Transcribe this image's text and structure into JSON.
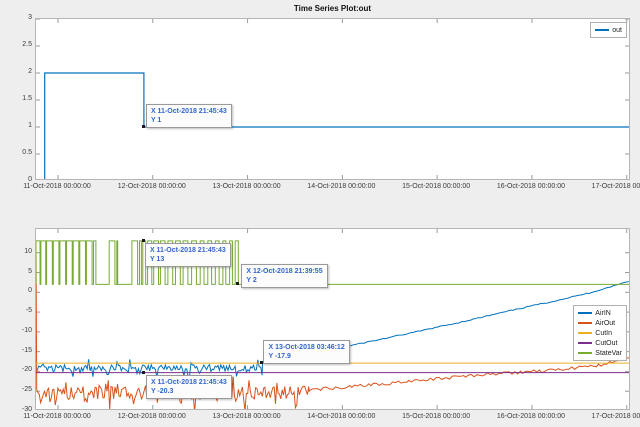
{
  "figure": {
    "title": "Time Series Plot:out",
    "background": "#eeeeee",
    "axes_border_color": "#b5b5b5",
    "datatip_text_color": "#3366cc"
  },
  "chart_data": [
    {
      "type": "line",
      "title": "Time Series Plot:out",
      "xlim_days": [
        -0.232,
        6.045
      ],
      "ylim": [
        0,
        3
      ],
      "yticks": [
        0,
        0.5,
        1,
        1.5,
        2,
        2.5,
        3
      ],
      "ytick_labels": [
        "0",
        "0.5",
        "1",
        "1.5",
        "2",
        "2.5",
        "3"
      ],
      "xtick_days": [
        0,
        1,
        2,
        3,
        4,
        5,
        6
      ],
      "xtick_labels": [
        "11-Oct-2018 00:00:00",
        "12-Oct-2018 00:00:00",
        "13-Oct-2018 00:00:00",
        "14-Oct-2018 00:00:00",
        "15-Oct-2018 00:00:00",
        "16-Oct-2018 00:00:00",
        "17-Oct-2018 00:00:00"
      ],
      "grid": false,
      "legend_position": "top-right",
      "series": [
        {
          "name": "out",
          "color": "#0072BD",
          "kind": "step",
          "points": [
            [
              -0.232,
              0
            ],
            [
              -0.14,
              0
            ],
            [
              -0.14,
              2
            ],
            [
              0.9067,
              2
            ],
            [
              0.9067,
              1
            ],
            [
              6.045,
              1
            ]
          ]
        }
      ],
      "datatips": [
        {
          "x_label": "11-Oct-2018 21:45:43",
          "x_days": 0.9067,
          "y": 1,
          "lines": [
            "X 11-Oct-2018 21:45:43",
            "Y 1"
          ]
        }
      ]
    },
    {
      "type": "line",
      "title": "",
      "xlim_days": [
        -0.232,
        6.045
      ],
      "ylim": [
        -30,
        16
      ],
      "yticks": [
        -30,
        -25,
        -20,
        -15,
        -10,
        -5,
        0,
        5,
        10
      ],
      "ytick_labels": [
        "-30",
        "-25",
        "-20",
        "-15",
        "-10",
        "-5",
        "0",
        "5",
        "10"
      ],
      "xtick_days": [
        0,
        1,
        2,
        3,
        4,
        5,
        6
      ],
      "xtick_labels": [
        "11-Oct-2018 00:00:00",
        "12-Oct-2018 00:00:00",
        "13-Oct-2018 00:00:00",
        "14-Oct-2018 00:00:00",
        "15-Oct-2018 00:00:00",
        "16-Oct-2018 00:00:00",
        "17-Oct-2018 00:00:00"
      ],
      "grid": false,
      "legend_position": "right",
      "series": [
        {
          "name": "AirIN",
          "color": "#0072BD",
          "kind": "composite",
          "parts": [
            {
              "kind": "noise",
              "t": [
                -0.232,
                2.157
              ],
              "mean": -19.1,
              "amp": 0.9,
              "down": 1.3,
              "up": 1.5,
              "dt": 0.015,
              "seed": 7,
              "end_v": -17.9
            },
            {
              "kind": "trend",
              "jitter": 0.13,
              "dt": 0.03,
              "seed": 11,
              "points": [
                [
                  2.157,
                  -17.9
                ],
                [
                  2.3,
                  -17.3
                ],
                [
                  2.45,
                  -16.8
                ],
                [
                  2.6,
                  -16.1
                ],
                [
                  2.8,
                  -15.2
                ],
                [
                  3.0,
                  -13.9
                ],
                [
                  3.2,
                  -12.9
                ],
                [
                  3.4,
                  -11.9
                ],
                [
                  3.6,
                  -10.9
                ],
                [
                  3.8,
                  -9.9
                ],
                [
                  4.0,
                  -8.8
                ],
                [
                  4.2,
                  -7.8
                ],
                [
                  4.4,
                  -6.7
                ],
                [
                  4.6,
                  -5.6
                ],
                [
                  4.8,
                  -4.5
                ],
                [
                  5.0,
                  -3.4
                ],
                [
                  5.2,
                  -2.4
                ],
                [
                  5.4,
                  -1.3
                ],
                [
                  5.6,
                  -0.2
                ],
                [
                  5.8,
                  1.2
                ],
                [
                  5.9,
                  1.9
                ],
                [
                  6.045,
                  3.0
                ]
              ]
            }
          ]
        },
        {
          "name": "AirOut",
          "color": "#D95319",
          "kind": "composite",
          "parts": [
            {
              "kind": "start_spike",
              "point": [
                -0.232,
                12
              ]
            },
            {
              "kind": "noise",
              "t": [
                -0.225,
                2.65
              ],
              "mean": -25.4,
              "amp": 1.7,
              "down": 2.6,
              "up": 2.0,
              "dt": 0.014,
              "seed": 23
            },
            {
              "kind": "trend",
              "jitter": 0.4,
              "dt": 0.03,
              "seed": 31,
              "points": [
                [
                  2.65,
                  -24.6
                ],
                [
                  2.9,
                  -24.2
                ],
                [
                  3.1,
                  -23.8
                ],
                [
                  3.3,
                  -23.4
                ],
                [
                  3.5,
                  -23.0
                ],
                [
                  3.7,
                  -22.6
                ],
                [
                  3.9,
                  -22.1
                ],
                [
                  4.1,
                  -21.7
                ],
                [
                  4.3,
                  -21.2
                ],
                [
                  4.5,
                  -20.8
                ],
                [
                  4.7,
                  -20.5
                ],
                [
                  4.9,
                  -20.2
                ],
                [
                  5.1,
                  -19.9
                ],
                [
                  5.3,
                  -19.5
                ],
                [
                  5.5,
                  -19.0
                ],
                [
                  5.7,
                  -18.4
                ],
                [
                  5.85,
                  -17.7
                ],
                [
                  5.95,
                  -17.1
                ],
                [
                  6.045,
                  -16.4
                ]
              ]
            }
          ]
        },
        {
          "name": "CutIn",
          "color": "#EDB120",
          "kind": "const",
          "value": -17.9
        },
        {
          "name": "CutOut",
          "color": "#7E2F8E",
          "kind": "const",
          "value": -20.3
        },
        {
          "name": "StateVar",
          "color": "#77AC30",
          "kind": "square",
          "low": 2,
          "high": 13,
          "tail_end": 6.045,
          "on_intervals": [
            [
              -0.232,
              -0.19
            ],
            [
              -0.18,
              -0.13
            ],
            [
              -0.12,
              -0.06
            ],
            [
              -0.05,
              0.01
            ],
            [
              0.02,
              0.08
            ],
            [
              0.09,
              0.15
            ],
            [
              0.16,
              0.22
            ],
            [
              0.23,
              0.29
            ],
            [
              0.3,
              0.36
            ],
            [
              0.375,
              0.4
            ],
            [
              0.54,
              0.6
            ],
            [
              0.62,
              0.63
            ],
            [
              0.78,
              0.84
            ],
            [
              0.86,
              0.88
            ],
            [
              0.895,
              0.925
            ],
            [
              0.945,
              0.99
            ],
            [
              1.01,
              1.06
            ],
            [
              1.08,
              1.13
            ],
            [
              1.16,
              1.21
            ],
            [
              1.24,
              1.29
            ],
            [
              1.32,
              1.37
            ],
            [
              1.41,
              1.46
            ],
            [
              1.5,
              1.54
            ],
            [
              1.58,
              1.62
            ],
            [
              1.66,
              1.7
            ],
            [
              1.74,
              1.77
            ],
            [
              1.81,
              1.84
            ],
            [
              1.87,
              1.9026
            ]
          ]
        }
      ],
      "datatips": [
        {
          "x_label": "11-Oct-2018 21:45:43",
          "x_days": 0.9067,
          "y": 13,
          "lines": [
            "X 11-Oct-2018 21:45:43",
            "Y 13"
          ]
        },
        {
          "x_label": "12-Oct-2018 21:39:55",
          "x_days": 1.9026,
          "y": 2,
          "lines": [
            "X 12-Oct-2018 21:39:55",
            "Y 2"
          ]
        },
        {
          "x_label": "13-Oct-2018 03:46:12",
          "x_days": 2.157,
          "y": -17.9,
          "lines": [
            "X 13-Oct-2018 03:46:12",
            "Y -17.9"
          ]
        },
        {
          "x_label": "11-Oct-2018 21:45:43",
          "x_days": 0.9067,
          "y": -20.3,
          "lines": [
            "X 11-Oct-2018 21:45:43",
            "Y -20.3"
          ]
        }
      ]
    }
  ],
  "legends": {
    "top_chart": [
      "out"
    ],
    "bottom_chart": [
      "AirIN",
      "AirOut",
      "CutIn",
      "CutOut",
      "StateVar"
    ]
  }
}
